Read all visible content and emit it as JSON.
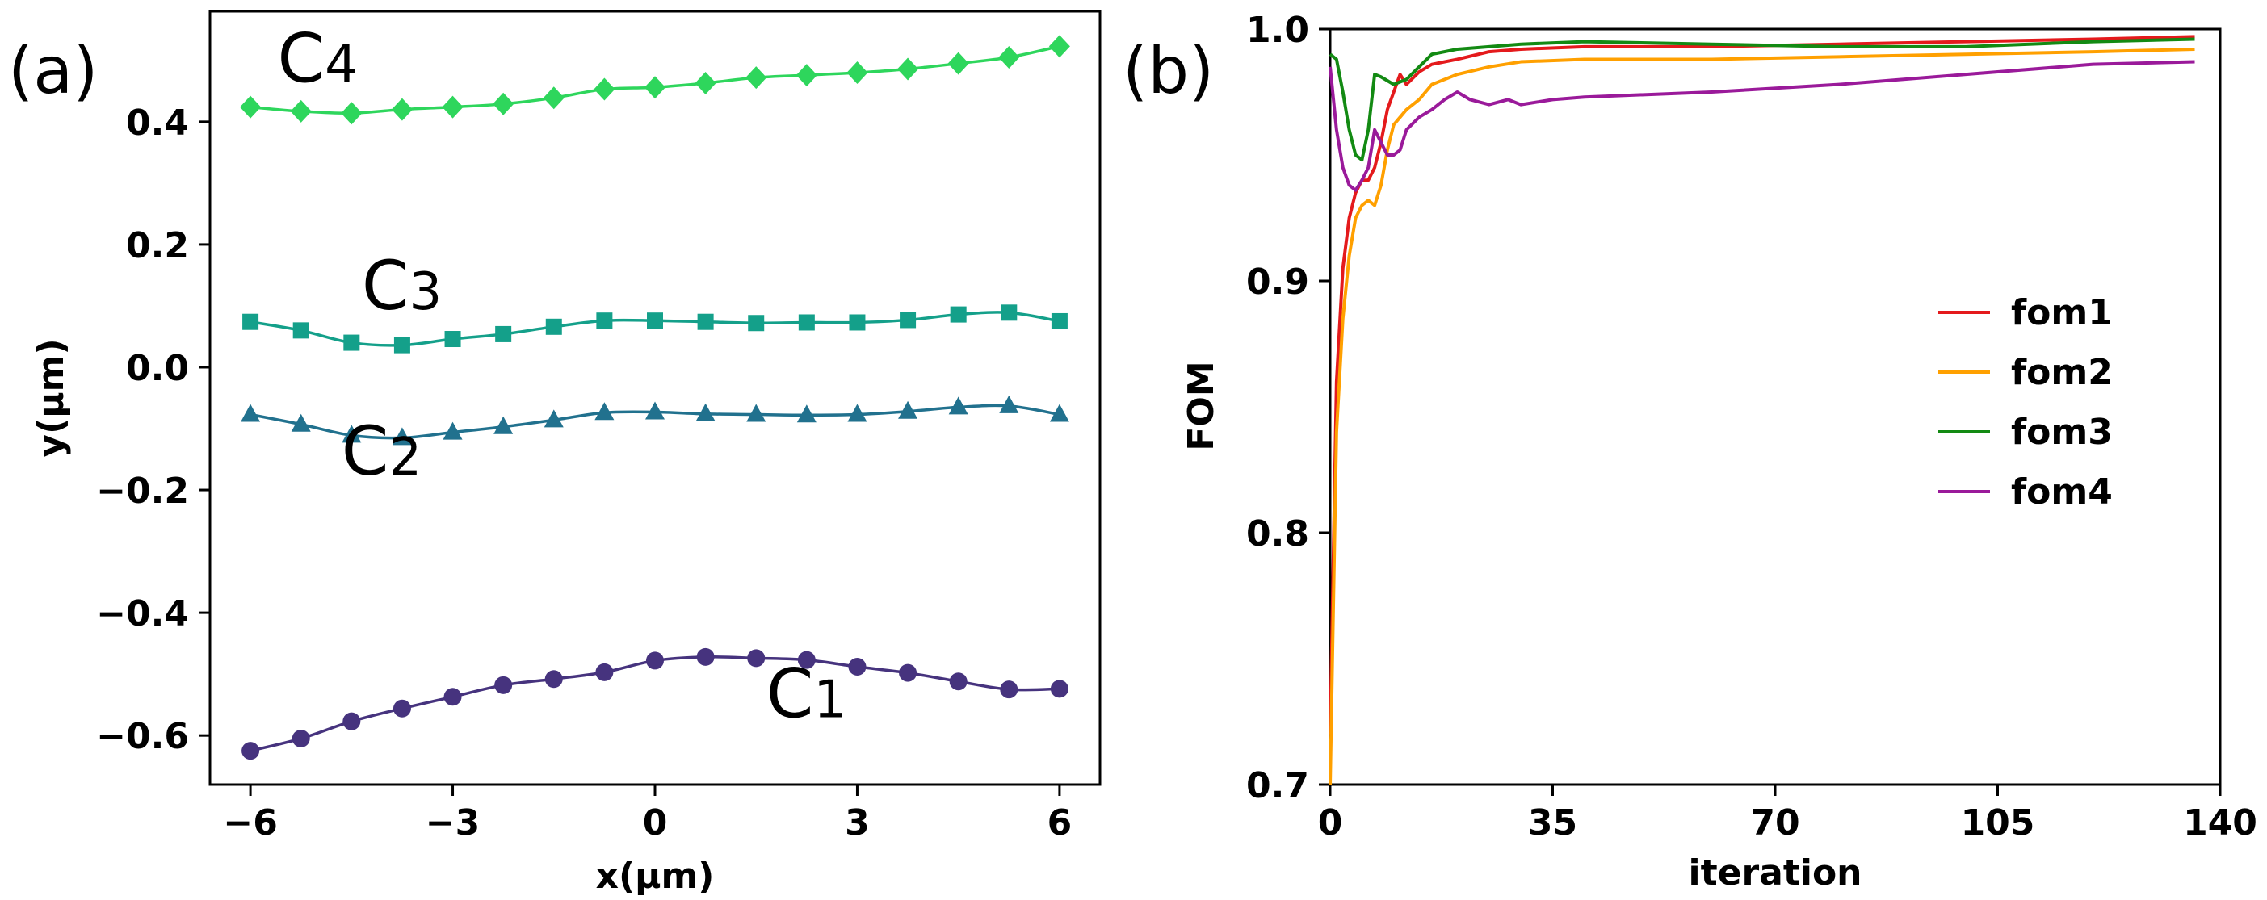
{
  "chart_data": [
    {
      "panel_label": "(a)",
      "type": "line",
      "xlabel": "x(μm)",
      "ylabel": "y(μm)",
      "xlim": [
        -6.6,
        6.6
      ],
      "ylim": [
        -0.68,
        0.58
      ],
      "xticks": [
        -6,
        -3,
        0,
        3,
        6
      ],
      "xtick_labels": [
        "−6",
        "−3",
        "0",
        "3",
        "6"
      ],
      "yticks": [
        -0.6,
        -0.4,
        -0.2,
        0.0,
        0.2,
        0.4
      ],
      "ytick_labels": [
        "−0.6",
        "−0.4",
        "−0.2",
        "0.0",
        "0.2",
        "0.4"
      ],
      "x": [
        -6.0,
        -5.25,
        -4.5,
        -3.75,
        -3.0,
        -2.25,
        -1.5,
        -0.75,
        0.0,
        0.75,
        1.5,
        2.25,
        3.0,
        3.75,
        4.5,
        5.25,
        6.0
      ],
      "series": [
        {
          "label": "C1",
          "color": "#46337e",
          "marker": "circle",
          "values": [
            -0.625,
            -0.605,
            -0.577,
            -0.556,
            -0.537,
            -0.518,
            -0.508,
            -0.497,
            -0.478,
            -0.472,
            -0.474,
            -0.477,
            -0.488,
            -0.498,
            -0.512,
            -0.525,
            -0.524
          ]
        },
        {
          "label": "C2",
          "color": "#21718e",
          "marker": "triangle",
          "values": [
            -0.077,
            -0.093,
            -0.111,
            -0.115,
            -0.106,
            -0.097,
            -0.086,
            -0.074,
            -0.073,
            -0.076,
            -0.077,
            -0.078,
            -0.077,
            -0.072,
            -0.065,
            -0.063,
            -0.077
          ]
        },
        {
          "label": "C3",
          "color": "#14a08a",
          "marker": "square",
          "values": [
            0.074,
            0.06,
            0.04,
            0.036,
            0.046,
            0.054,
            0.066,
            0.076,
            0.076,
            0.074,
            0.072,
            0.073,
            0.073,
            0.077,
            0.086,
            0.089,
            0.075
          ]
        },
        {
          "label": "C4",
          "color": "#2ed65c",
          "marker": "diamond",
          "values": [
            0.424,
            0.417,
            0.414,
            0.42,
            0.424,
            0.429,
            0.439,
            0.453,
            0.456,
            0.463,
            0.472,
            0.476,
            0.48,
            0.486,
            0.495,
            0.505,
            0.523
          ]
        }
      ]
    },
    {
      "panel_label": "(b)",
      "type": "line",
      "xlabel": "iteration",
      "ylabel": "FOM",
      "xlim": [
        0,
        140
      ],
      "ylim": [
        0.7,
        1.0
      ],
      "xticks": [
        0,
        35,
        70,
        105,
        140
      ],
      "xtick_labels": [
        "0",
        "35",
        "70",
        "105",
        "140"
      ],
      "yticks": [
        0.7,
        0.8,
        0.9,
        1.0
      ],
      "ytick_labels": [
        "0.7",
        "0.8",
        "0.9",
        "1.0"
      ],
      "legend": "right",
      "series": [
        {
          "name": "fom1",
          "color": "#e41a1c",
          "x": [
            0,
            1,
            2,
            3,
            4,
            5,
            6,
            7,
            8,
            9,
            10,
            11,
            12,
            14,
            16,
            20,
            25,
            30,
            40,
            60,
            80,
            100,
            120,
            136
          ],
          "values": [
            0.72,
            0.86,
            0.905,
            0.925,
            0.935,
            0.94,
            0.94,
            0.945,
            0.955,
            0.968,
            0.975,
            0.982,
            0.978,
            0.983,
            0.986,
            0.988,
            0.991,
            0.992,
            0.993,
            0.993,
            0.994,
            0.995,
            0.996,
            0.997
          ]
        },
        {
          "name": "fom2",
          "color": "#ffa000",
          "x": [
            0,
            1,
            2,
            3,
            4,
            5,
            6,
            7,
            8,
            9,
            10,
            12,
            14,
            16,
            20,
            25,
            30,
            40,
            60,
            80,
            100,
            120,
            136
          ],
          "values": [
            0.7,
            0.84,
            0.885,
            0.91,
            0.925,
            0.93,
            0.932,
            0.93,
            0.938,
            0.952,
            0.962,
            0.968,
            0.972,
            0.978,
            0.982,
            0.985,
            0.987,
            0.988,
            0.988,
            0.989,
            0.99,
            0.991,
            0.992
          ]
        },
        {
          "name": "fom3",
          "color": "#138a13",
          "x": [
            0,
            1,
            2,
            3,
            4,
            5,
            6,
            7,
            8,
            10,
            12,
            14,
            16,
            20,
            25,
            30,
            40,
            60,
            80,
            100,
            120,
            136
          ],
          "values": [
            0.99,
            0.988,
            0.975,
            0.96,
            0.95,
            0.948,
            0.96,
            0.982,
            0.981,
            0.978,
            0.98,
            0.985,
            0.99,
            0.992,
            0.993,
            0.994,
            0.995,
            0.994,
            0.993,
            0.993,
            0.995,
            0.996
          ]
        },
        {
          "name": "fom4",
          "color": "#9a1a9a",
          "x": [
            0,
            1,
            2,
            3,
            4,
            5,
            6,
            7,
            8,
            9,
            10,
            11,
            12,
            14,
            16,
            18,
            20,
            22,
            25,
            28,
            30,
            35,
            40,
            60,
            80,
            100,
            120,
            136
          ],
          "values": [
            0.985,
            0.96,
            0.945,
            0.938,
            0.936,
            0.94,
            0.945,
            0.96,
            0.955,
            0.95,
            0.95,
            0.952,
            0.96,
            0.965,
            0.968,
            0.972,
            0.975,
            0.972,
            0.97,
            0.972,
            0.97,
            0.972,
            0.973,
            0.975,
            0.978,
            0.982,
            0.986,
            0.987
          ]
        }
      ]
    }
  ]
}
